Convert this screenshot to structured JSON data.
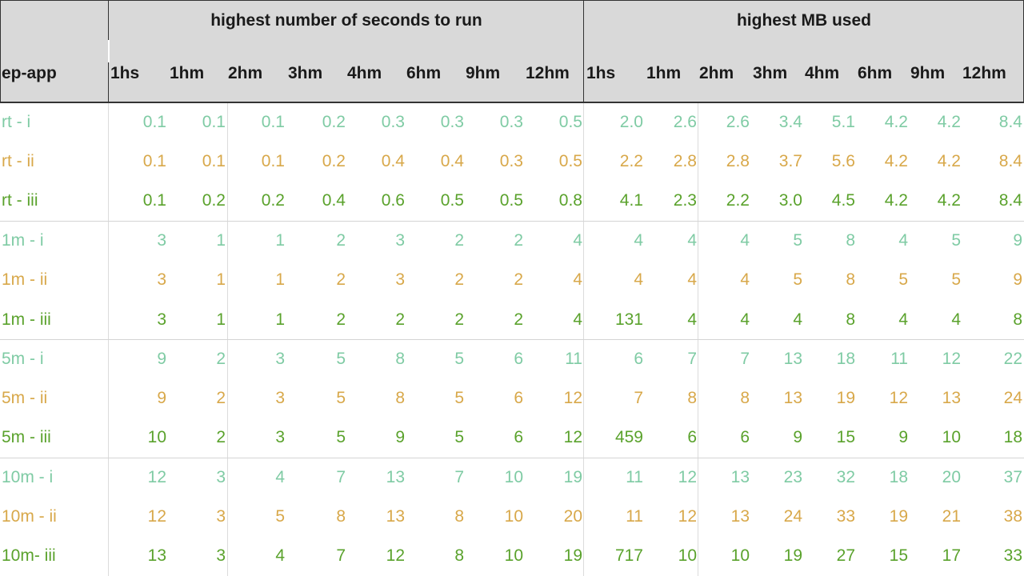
{
  "table": {
    "row_header_label": "ep-app",
    "groups": [
      {
        "title": "highest number of seconds to run"
      },
      {
        "title": "highest MB used"
      }
    ],
    "columns": [
      "1hs",
      "1hm",
      "2hm",
      "3hm",
      "4hm",
      "6hm",
      "9hm",
      "12hm"
    ],
    "row_colors": {
      "i": "#7fcba4",
      "ii": "#d8a84a",
      "iii": "#5aa22c"
    },
    "rows": [
      {
        "label": "rt - i",
        "variant": "i",
        "seconds": [
          "0.1",
          "0.1",
          "0.1",
          "0.2",
          "0.3",
          "0.3",
          "0.3",
          "0.5"
        ],
        "mb": [
          "2.0",
          "2.6",
          "2.6",
          "3.4",
          "5.1",
          "4.2",
          "4.2",
          "8.4"
        ]
      },
      {
        "label": "rt - ii",
        "variant": "ii",
        "seconds": [
          "0.1",
          "0.1",
          "0.1",
          "0.2",
          "0.4",
          "0.4",
          "0.3",
          "0.5"
        ],
        "mb": [
          "2.2",
          "2.8",
          "2.8",
          "3.7",
          "5.6",
          "4.2",
          "4.2",
          "8.4"
        ]
      },
      {
        "label": "rt - iii",
        "variant": "iii",
        "seconds": [
          "0.1",
          "0.2",
          "0.2",
          "0.4",
          "0.6",
          "0.5",
          "0.5",
          "0.8"
        ],
        "mb": [
          "4.1",
          "2.3",
          "2.2",
          "3.0",
          "4.5",
          "4.2",
          "4.2",
          "8.4"
        ]
      },
      {
        "label": "1m - i",
        "variant": "i",
        "seconds": [
          "3",
          "1",
          "1",
          "2",
          "3",
          "2",
          "2",
          "4"
        ],
        "mb": [
          "4",
          "4",
          "4",
          "5",
          "8",
          "4",
          "5",
          "9"
        ]
      },
      {
        "label": "1m - ii",
        "variant": "ii",
        "seconds": [
          "3",
          "1",
          "1",
          "2",
          "3",
          "2",
          "2",
          "4"
        ],
        "mb": [
          "4",
          "4",
          "4",
          "5",
          "8",
          "5",
          "5",
          "9"
        ]
      },
      {
        "label": "1m - iii",
        "variant": "iii",
        "seconds": [
          "3",
          "1",
          "1",
          "2",
          "2",
          "2",
          "2",
          "4"
        ],
        "mb": [
          "131",
          "4",
          "4",
          "4",
          "8",
          "4",
          "4",
          "8"
        ]
      },
      {
        "label": "5m - i",
        "variant": "i",
        "seconds": [
          "9",
          "2",
          "3",
          "5",
          "8",
          "5",
          "6",
          "11"
        ],
        "mb": [
          "6",
          "7",
          "7",
          "13",
          "18",
          "11",
          "12",
          "22"
        ]
      },
      {
        "label": "5m - ii",
        "variant": "ii",
        "seconds": [
          "9",
          "2",
          "3",
          "5",
          "8",
          "5",
          "6",
          "12"
        ],
        "mb": [
          "7",
          "8",
          "8",
          "13",
          "19",
          "12",
          "13",
          "24"
        ]
      },
      {
        "label": "5m - iii",
        "variant": "iii",
        "seconds": [
          "10",
          "2",
          "3",
          "5",
          "9",
          "5",
          "6",
          "12"
        ],
        "mb": [
          "459",
          "6",
          "6",
          "9",
          "15",
          "9",
          "10",
          "18"
        ]
      },
      {
        "label": "10m - i",
        "variant": "i",
        "seconds": [
          "12",
          "3",
          "4",
          "7",
          "13",
          "7",
          "10",
          "19"
        ],
        "mb": [
          "11",
          "12",
          "13",
          "23",
          "32",
          "18",
          "20",
          "37"
        ]
      },
      {
        "label": "10m - ii",
        "variant": "ii",
        "seconds": [
          "12",
          "3",
          "5",
          "8",
          "13",
          "8",
          "10",
          "20"
        ],
        "mb": [
          "11",
          "12",
          "13",
          "24",
          "33",
          "19",
          "21",
          "38"
        ]
      },
      {
        "label": "10m- iii",
        "variant": "iii",
        "seconds": [
          "13",
          "3",
          "4",
          "7",
          "12",
          "8",
          "10",
          "19"
        ],
        "mb": [
          "717",
          "10",
          "10",
          "19",
          "27",
          "15",
          "17",
          "33"
        ]
      }
    ]
  }
}
